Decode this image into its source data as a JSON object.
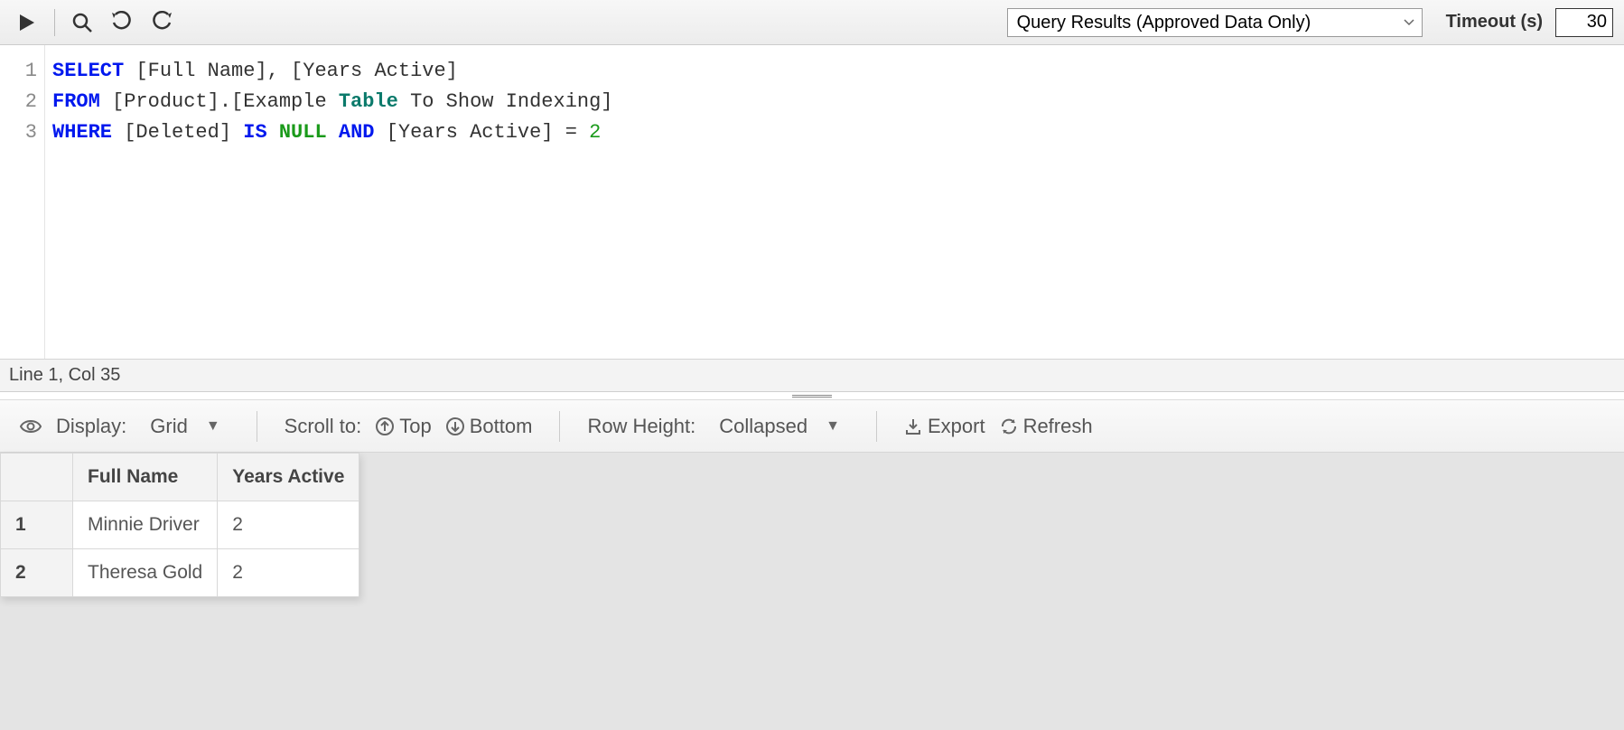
{
  "toolbar": {
    "query_results_dropdown": "Query Results (Approved Data Only)",
    "timeout_label": "Timeout (s)",
    "timeout_value": "30"
  },
  "editor": {
    "line_numbers": [
      "1",
      "2",
      "3"
    ],
    "tokens": [
      [
        {
          "t": "SELECT",
          "c": "kw"
        },
        {
          "t": " [Full Name], [Years Active]",
          "c": ""
        }
      ],
      [
        {
          "t": "FROM",
          "c": "kw"
        },
        {
          "t": " [Product].[Example ",
          "c": ""
        },
        {
          "t": "Table",
          "c": "kw2"
        },
        {
          "t": " To Show Indexing]",
          "c": ""
        }
      ],
      [
        {
          "t": "WHERE",
          "c": "kw"
        },
        {
          "t": " [Deleted] ",
          "c": ""
        },
        {
          "t": "IS",
          "c": "kw"
        },
        {
          "t": " ",
          "c": ""
        },
        {
          "t": "NULL",
          "c": "nullkw"
        },
        {
          "t": " ",
          "c": ""
        },
        {
          "t": "AND",
          "c": "kw"
        },
        {
          "t": " [Years Active] = ",
          "c": ""
        },
        {
          "t": "2",
          "c": "num"
        }
      ]
    ]
  },
  "status": {
    "cursor": "Line 1, Col 35"
  },
  "results_toolbar": {
    "display_label": "Display:",
    "display_value": "Grid",
    "scroll_label": "Scroll to:",
    "top": "Top",
    "bottom": "Bottom",
    "row_height_label": "Row Height:",
    "row_height_value": "Collapsed",
    "export": "Export",
    "refresh": "Refresh"
  },
  "results": {
    "columns": [
      "Full Name",
      "Years Active"
    ],
    "rows": [
      {
        "n": "1",
        "cells": [
          "Minnie Driver",
          "2"
        ]
      },
      {
        "n": "2",
        "cells": [
          "Theresa Gold",
          "2"
        ]
      }
    ]
  }
}
